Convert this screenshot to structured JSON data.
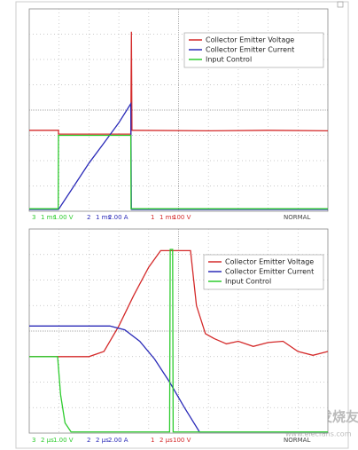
{
  "chart_data": [
    {
      "type": "line",
      "xlim": [
        0,
        10
      ],
      "ylim": [
        0,
        8
      ],
      "grid": true,
      "series": [
        {
          "name": "Collector Emitter Voltage",
          "color": "#d42a2a",
          "x": [
            0,
            0.98,
            0.98,
            3.4,
            3.42,
            3.44,
            3.46,
            6,
            8,
            10
          ],
          "values": [
            3.2,
            3.2,
            3.05,
            3.05,
            7.1,
            3.2,
            3.2,
            3.18,
            3.2,
            3.18
          ]
        },
        {
          "name": "Collector Emitter Current",
          "color": "#2a2ab8",
          "x": [
            0,
            0.98,
            1.5,
            2,
            2.5,
            3,
            3.4,
            3.42,
            10
          ],
          "values": [
            0.07,
            0.07,
            1.0,
            1.9,
            2.7,
            3.5,
            4.25,
            0.07,
            0.07
          ]
        },
        {
          "name": "Input Control",
          "color": "#2ecc2e",
          "x": [
            0,
            0.97,
            0.98,
            3.4,
            3.41,
            10
          ],
          "values": [
            0.1,
            0.1,
            3.0,
            3.0,
            0.1,
            0.1
          ]
        }
      ],
      "footer": [
        {
          "text": "3",
          "color": "#2ecc2e"
        },
        {
          "text": "1 ms",
          "color": "#2ecc2e"
        },
        {
          "text": "1.00 V",
          "color": "#2ecc2e"
        },
        {
          "text": "2",
          "color": "#2a2ab8"
        },
        {
          "text": "1 ms",
          "color": "#2a2ab8"
        },
        {
          "text": "2.00 A",
          "color": "#2a2ab8"
        },
        {
          "text": "1",
          "color": "#d42a2a"
        },
        {
          "text": "1 ms",
          "color": "#d42a2a"
        },
        {
          "text": "100 V",
          "color": "#d42a2a"
        },
        {
          "text": "NORMAL",
          "color": "#444"
        }
      ]
    },
    {
      "type": "line",
      "xlim": [
        0,
        10
      ],
      "ylim": [
        0,
        8
      ],
      "grid": true,
      "series": [
        {
          "name": "Collector Emitter Voltage",
          "color": "#d42a2a",
          "x": [
            0,
            2.0,
            2.5,
            3,
            3.5,
            4,
            4.4,
            5.4,
            5.6,
            5.9,
            6.2,
            6.6,
            7,
            7.5,
            8,
            8.5,
            9,
            9.5,
            10
          ],
          "values": [
            3.0,
            3.0,
            3.2,
            4.2,
            5.4,
            6.5,
            7.15,
            7.15,
            5.0,
            3.9,
            3.7,
            3.5,
            3.6,
            3.4,
            3.55,
            3.6,
            3.2,
            3.05,
            3.2
          ]
        },
        {
          "name": "Collector Emitter Current",
          "color": "#2a2ab8",
          "x": [
            0,
            2.7,
            3.2,
            3.7,
            4.2,
            4.7,
            5.2,
            5.7,
            10
          ],
          "values": [
            4.2,
            4.2,
            4.05,
            3.6,
            2.9,
            2.0,
            1.0,
            0.05,
            0.05
          ]
        },
        {
          "name": "Input Control",
          "color": "#2ecc2e",
          "x": [
            0,
            0.95,
            1.05,
            1.2,
            1.4,
            4.7,
            4.72,
            4.8,
            4.82,
            10
          ],
          "values": [
            3.0,
            3.0,
            1.5,
            0.4,
            0.05,
            0.05,
            7.2,
            7.2,
            0.05,
            0.05
          ]
        }
      ],
      "footer": [
        {
          "text": "3",
          "color": "#2ecc2e"
        },
        {
          "text": "2 μs",
          "color": "#2ecc2e"
        },
        {
          "text": "1.00 V",
          "color": "#2ecc2e"
        },
        {
          "text": "2",
          "color": "#2a2ab8"
        },
        {
          "text": "2 μs",
          "color": "#2a2ab8"
        },
        {
          "text": "2.00 A",
          "color": "#2a2ab8"
        },
        {
          "text": "1",
          "color": "#d42a2a"
        },
        {
          "text": "2 μs",
          "color": "#d42a2a"
        },
        {
          "text": "100 V",
          "color": "#d42a2a"
        },
        {
          "text": "NORMAL",
          "color": "#444"
        }
      ]
    }
  ],
  "watermark": {
    "title": "电子发烧友",
    "url": "www.elecfans.com"
  }
}
